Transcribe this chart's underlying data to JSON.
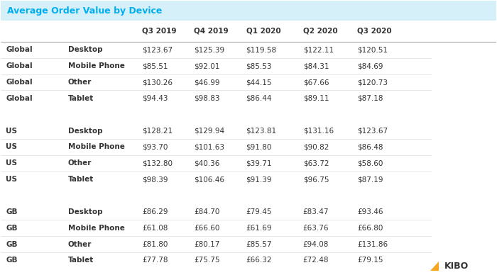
{
  "title": "Average Order Value by Device",
  "title_color": "#00AEEF",
  "header_bg": "#D6F0FA",
  "col_headers": [
    "",
    "",
    "Q3 2019",
    "Q4 2019",
    "Q1 2020",
    "Q2 2020",
    "Q3 2020"
  ],
  "rows": [
    [
      "Global",
      "Desktop",
      "$123.67",
      "$125.39",
      "$119.58",
      "$122.11",
      "$120.51"
    ],
    [
      "Global",
      "Mobile Phone",
      "$85.51",
      "$92.01",
      "$85.53",
      "$84.31",
      "$84.69"
    ],
    [
      "Global",
      "Other",
      "$130.26",
      "$46.99",
      "$44.15",
      "$67.66",
      "$120.73"
    ],
    [
      "Global",
      "Tablet",
      "$94.43",
      "$98.83",
      "$86.44",
      "$89.11",
      "$87.18"
    ],
    [
      "",
      "",
      "",
      "",
      "",
      "",
      ""
    ],
    [
      "US",
      "Desktop",
      "$128.21",
      "$129.94",
      "$123.81",
      "$131.16",
      "$123.67"
    ],
    [
      "US",
      "Mobile Phone",
      "$93.70",
      "$101.63",
      "$91.80",
      "$90.82",
      "$86.48"
    ],
    [
      "US",
      "Other",
      "$132.80",
      "$40.36",
      "$39.71",
      "$63.72",
      "$58.60"
    ],
    [
      "US",
      "Tablet",
      "$98.39",
      "$106.46",
      "$91.39",
      "$96.75",
      "$87.19"
    ],
    [
      "",
      "",
      "",
      "",
      "",
      "",
      ""
    ],
    [
      "GB",
      "Desktop",
      "£86.29",
      "£84.70",
      "£79.45",
      "£83.47",
      "£93.46"
    ],
    [
      "GB",
      "Mobile Phone",
      "£61.08",
      "£66.60",
      "£61.69",
      "£63.76",
      "£66.80"
    ],
    [
      "GB",
      "Other",
      "£81.80",
      "£80.17",
      "£85.57",
      "£94.08",
      "£131.86"
    ],
    [
      "GB",
      "Tablet",
      "£77.78",
      "£75.75",
      "£66.32",
      "£72.48",
      "£79.15"
    ]
  ],
  "separator_rows": [
    4,
    9
  ],
  "bg_color": "#FFFFFF",
  "row_line_color": "#DDDDDD",
  "text_color": "#333333",
  "kibo_logo_text": "KIBO",
  "figsize": [
    7.0,
    3.88
  ],
  "dpi": 100
}
